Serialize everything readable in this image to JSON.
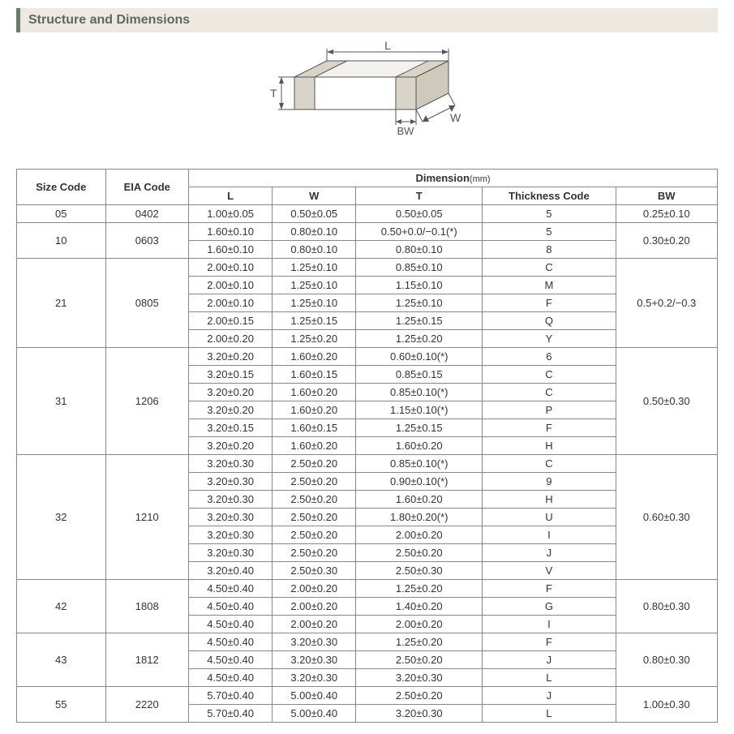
{
  "header": {
    "title": "Structure and Dimensions"
  },
  "diagram": {
    "labels": {
      "L": "L",
      "W": "W",
      "T": "T",
      "BW": "BW"
    },
    "stroke": "#555555",
    "fill": "#f4f2ee",
    "label_color": "#555555",
    "label_fontsize": 14
  },
  "table": {
    "headers": {
      "size_code": "Size Code",
      "eia_code": "EIA Code",
      "dimension": "Dimension",
      "dimension_unit": "(mm)",
      "L": "L",
      "W": "W",
      "T": "T",
      "thickness_code": "Thickness  Code",
      "BW": "BW"
    },
    "groups": [
      {
        "size_code": "05",
        "eia_code": "0402",
        "bw": "0.25±0.10",
        "rows": [
          {
            "L": "1.00±0.05",
            "W": "0.50±0.05",
            "T": "0.50±0.05",
            "tc": "5"
          }
        ]
      },
      {
        "size_code": "10",
        "eia_code": "0603",
        "bw": "0.30±0.20",
        "rows": [
          {
            "L": "1.60±0.10",
            "W": "0.80±0.10",
            "T": "0.50+0.0/−0.1(*)",
            "tc": "5"
          },
          {
            "L": "1.60±0.10",
            "W": "0.80±0.10",
            "T": "0.80±0.10",
            "tc": "8"
          }
        ]
      },
      {
        "size_code": "21",
        "eia_code": "0805",
        "bw": "0.5+0.2/−0.3",
        "rows": [
          {
            "L": "2.00±0.10",
            "W": "1.25±0.10",
            "T": "0.85±0.10",
            "tc": "C"
          },
          {
            "L": "2.00±0.10",
            "W": "1.25±0.10",
            "T": "1.15±0.10",
            "tc": "M"
          },
          {
            "L": "2.00±0.10",
            "W": "1.25±0.10",
            "T": "1.25±0.10",
            "tc": "F"
          },
          {
            "L": "2.00±0.15",
            "W": "1.25±0.15",
            "T": "1.25±0.15",
            "tc": "Q"
          },
          {
            "L": "2.00±0.20",
            "W": "1.25±0.20",
            "T": "1.25±0.20",
            "tc": "Y"
          }
        ]
      },
      {
        "size_code": "31",
        "eia_code": "1206",
        "bw": "0.50±0.30",
        "rows": [
          {
            "L": "3.20±0.20",
            "W": "1.60±0.20",
            "T": "0.60±0.10(*)",
            "tc": "6"
          },
          {
            "L": "3.20±0.15",
            "W": "1.60±0.15",
            "T": "0.85±0.15",
            "tc": "C"
          },
          {
            "L": "3.20±0.20",
            "W": "1.60±0.20",
            "T": "0.85±0.10(*)",
            "tc": "C"
          },
          {
            "L": "3.20±0.20",
            "W": "1.60±0.20",
            "T": "1.15±0.10(*)",
            "tc": "P"
          },
          {
            "L": "3.20±0.15",
            "W": "1.60±0.15",
            "T": "1.25±0.15",
            "tc": "F"
          },
          {
            "L": "3.20±0.20",
            "W": "1.60±0.20",
            "T": "1.60±0.20",
            "tc": "H"
          }
        ]
      },
      {
        "size_code": "32",
        "eia_code": "1210",
        "bw": "0.60±0.30",
        "rows": [
          {
            "L": "3.20±0.30",
            "W": "2.50±0.20",
            "T": "0.85±0.10(*)",
            "tc": "C"
          },
          {
            "L": "3.20±0.30",
            "W": "2.50±0.20",
            "T": "0.90±0.10(*)",
            "tc": "9"
          },
          {
            "L": "3.20±0.30",
            "W": "2.50±0.20",
            "T": "1.60±0.20",
            "tc": "H"
          },
          {
            "L": "3.20±0.30",
            "W": "2.50±0.20",
            "T": "1.80±0.20(*)",
            "tc": "U"
          },
          {
            "L": "3.20±0.30",
            "W": "2.50±0.20",
            "T": "2.00±0.20",
            "tc": "I"
          },
          {
            "L": "3.20±0.30",
            "W": "2.50±0.20",
            "T": "2.50±0.20",
            "tc": "J"
          },
          {
            "L": "3.20±0.40",
            "W": "2.50±0.30",
            "T": "2.50±0.30",
            "tc": "V"
          }
        ]
      },
      {
        "size_code": "42",
        "eia_code": "1808",
        "bw": "0.80±0.30",
        "rows": [
          {
            "L": "4.50±0.40",
            "W": "2.00±0.20",
            "T": "1.25±0.20",
            "tc": "F"
          },
          {
            "L": "4.50±0.40",
            "W": "2.00±0.20",
            "T": "1.40±0.20",
            "tc": "G"
          },
          {
            "L": "4.50±0.40",
            "W": "2.00±0.20",
            "T": "2.00±0.20",
            "tc": "I"
          }
        ]
      },
      {
        "size_code": "43",
        "eia_code": "1812",
        "bw": "0.80±0.30",
        "rows": [
          {
            "L": "4.50±0.40",
            "W": "3.20±0.30",
            "T": "1.25±0.20",
            "tc": "F"
          },
          {
            "L": "4.50±0.40",
            "W": "3.20±0.30",
            "T": "2.50±0.20",
            "tc": "J"
          },
          {
            "L": "4.50±0.40",
            "W": "3.20±0.30",
            "T": "3.20±0.30",
            "tc": "L"
          }
        ]
      },
      {
        "size_code": "55",
        "eia_code": "2220",
        "bw": "1.00±0.30",
        "rows": [
          {
            "L": "5.70±0.40",
            "W": "5.00±0.40",
            "T": "2.50±0.20",
            "tc": "J"
          },
          {
            "L": "5.70±0.40",
            "W": "5.00±0.40",
            "T": "3.20±0.30",
            "tc": "L"
          }
        ]
      }
    ]
  },
  "styles": {
    "header_bg": "#ede9e0",
    "header_accent": "#6b7a6e",
    "header_text": "#5a6b5e",
    "border_color": "#888888",
    "font_family": "Arial, Helvetica, sans-serif",
    "body_fontsize": 13,
    "header_fontsize": 16
  }
}
